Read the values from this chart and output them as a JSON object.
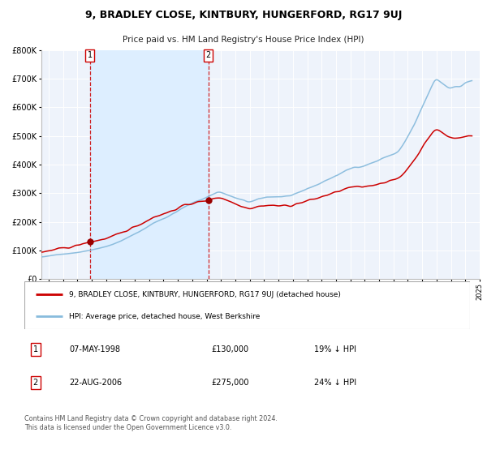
{
  "title": "9, BRADLEY CLOSE, KINTBURY, HUNGERFORD, RG17 9UJ",
  "subtitle": "Price paid vs. HM Land Registry's House Price Index (HPI)",
  "sale1_label": "07-MAY-1998",
  "sale1_price_str": "£130,000",
  "sale1_pct": "19% ↓ HPI",
  "sale2_label": "22-AUG-2006",
  "sale2_price_str": "£275,000",
  "sale2_pct": "24% ↓ HPI",
  "legend1": "9, BRADLEY CLOSE, KINTBURY, HUNGERFORD, RG17 9UJ (detached house)",
  "legend2": "HPI: Average price, detached house, West Berkshire",
  "hpi_color": "#88bbdd",
  "price_color": "#cc0000",
  "marker_color": "#990000",
  "shade_color": "#ddeeff",
  "vline_color": "#cc0000",
  "ylim": [
    0,
    800000
  ],
  "yticks": [
    0,
    100000,
    200000,
    300000,
    400000,
    500000,
    600000,
    700000,
    800000
  ],
  "footer": "Contains HM Land Registry data © Crown copyright and database right 2024.\nThis data is licensed under the Open Government Licence v3.0."
}
